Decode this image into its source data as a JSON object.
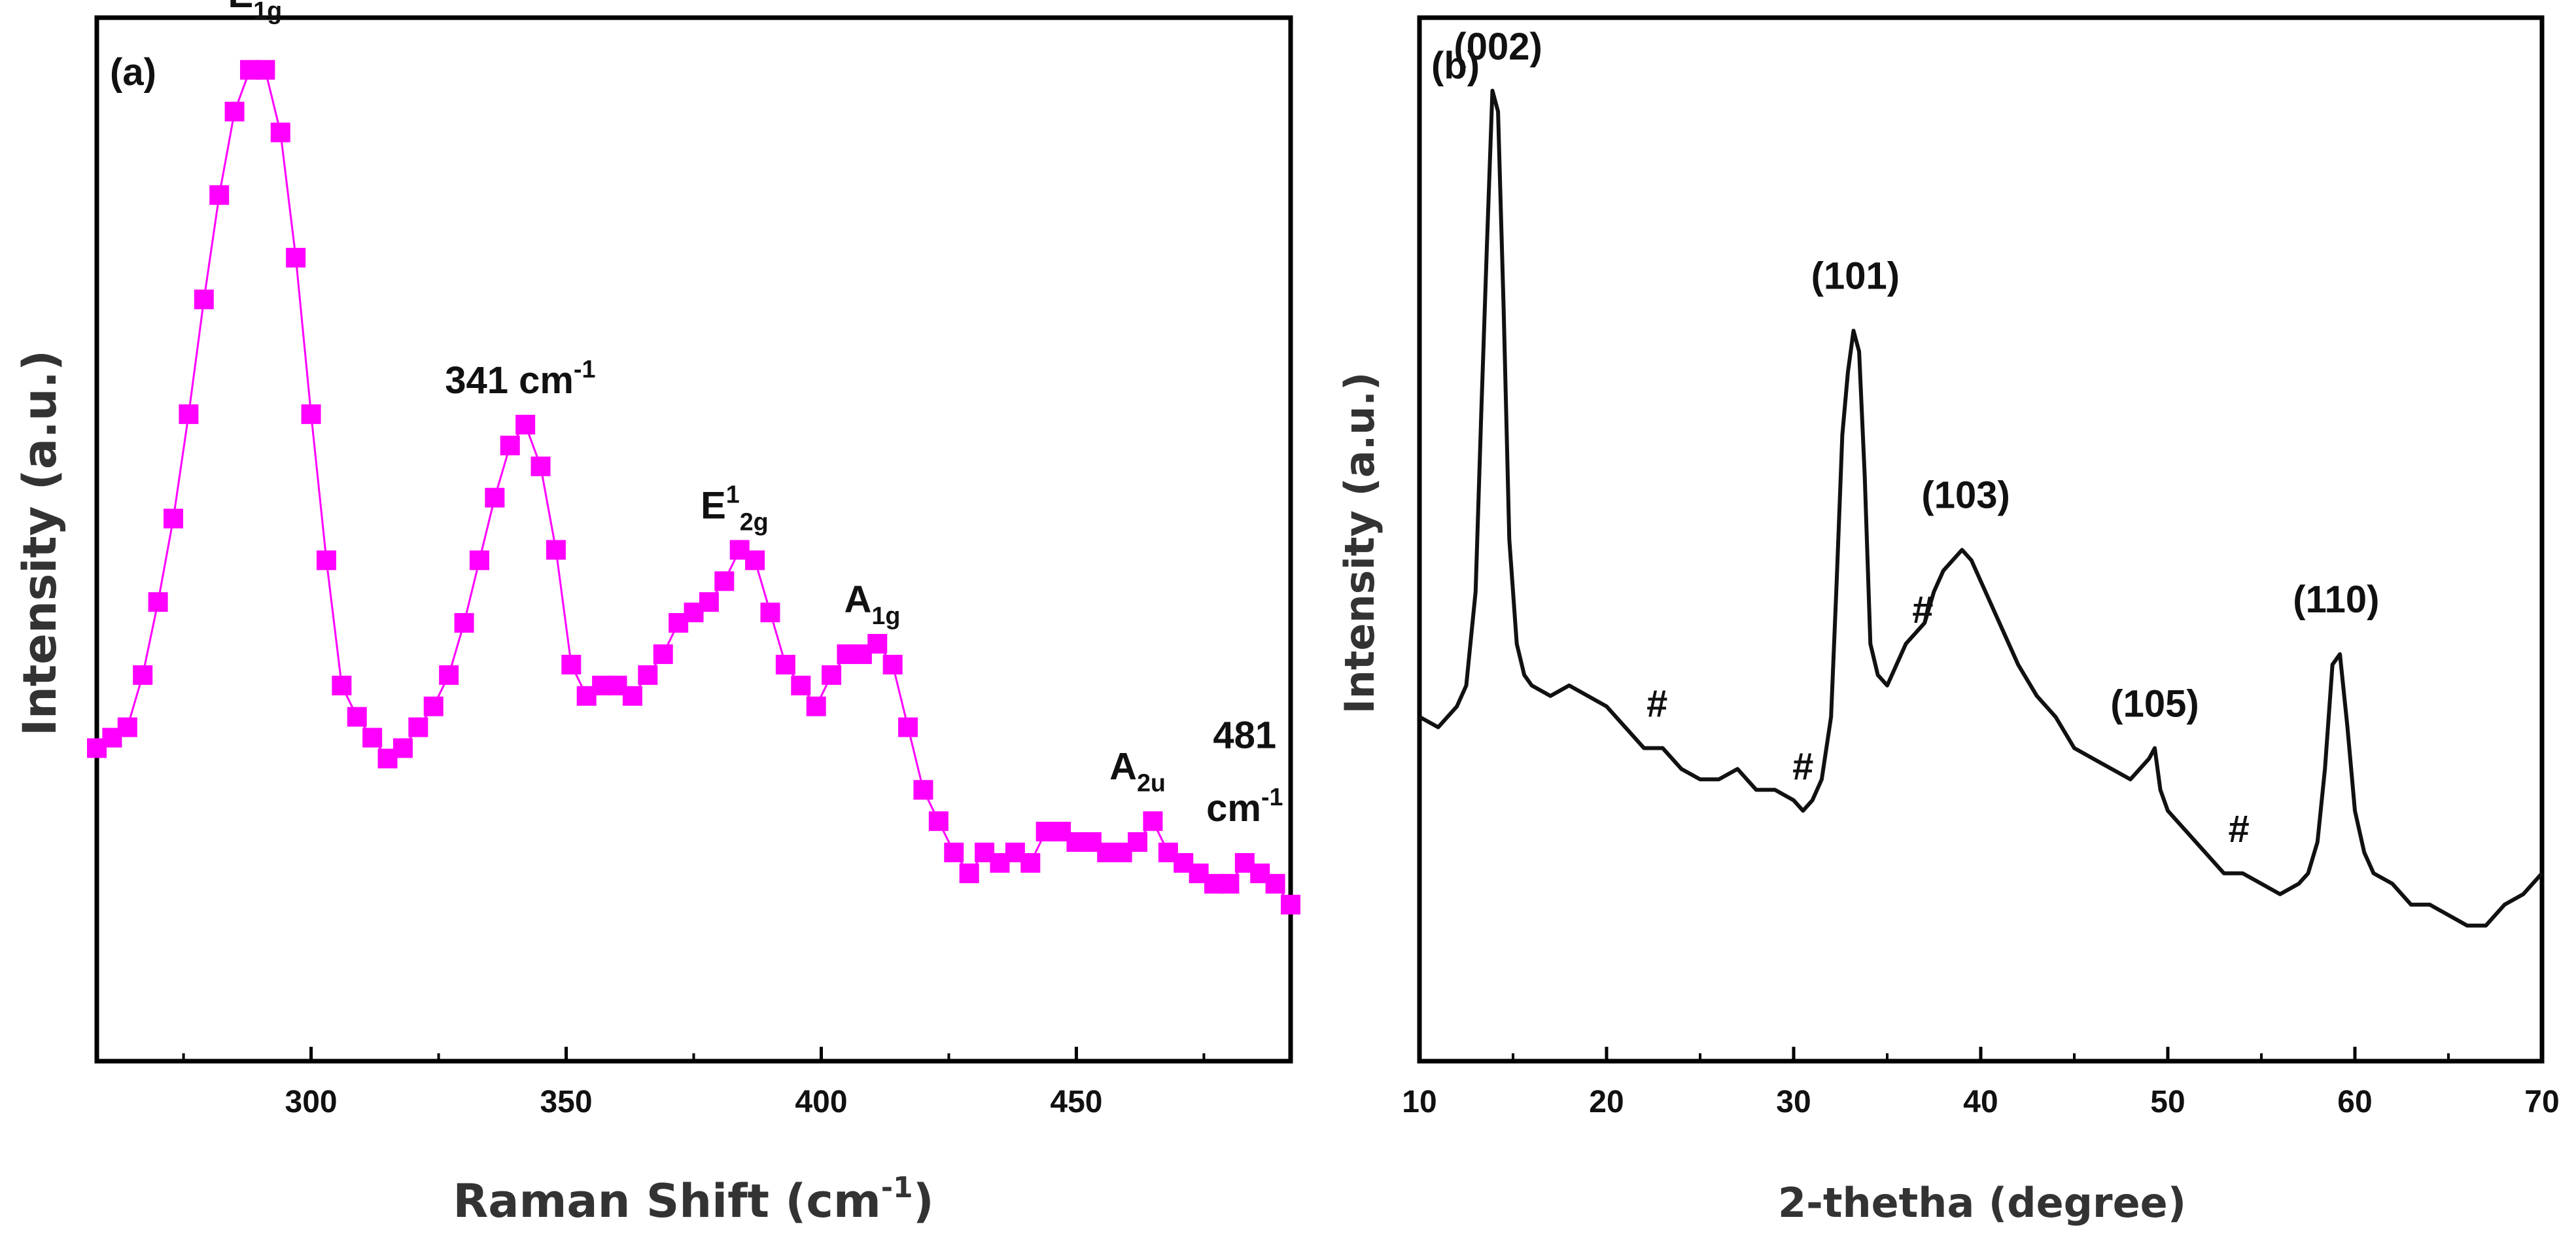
{
  "chart_data": [
    {
      "panel_label": "(a)",
      "type": "line",
      "xlabel": "Raman Shift (cm",
      "xlabel_sup": "-1",
      "xlabel_close": ")",
      "ylabel": "Intensity (a.u.)",
      "xlim": [
        258,
        492
      ],
      "ylim": [
        0,
        100
      ],
      "x_ticks": [
        "300",
        "350",
        "400",
        "450"
      ],
      "series_color": "#ff00ff",
      "marker": "square",
      "series": [
        {
          "name": "Raman",
          "x": [
            258,
            261,
            264,
            267,
            270,
            273,
            276,
            279,
            282,
            285,
            288,
            291,
            294,
            297,
            300,
            303,
            306,
            309,
            312,
            315,
            318,
            321,
            324,
            327,
            330,
            333,
            336,
            339,
            342,
            345,
            348,
            351,
            354,
            357,
            360,
            363,
            366,
            369,
            372,
            375,
            378,
            381,
            384,
            387,
            390,
            393,
            396,
            399,
            402,
            405,
            408,
            411,
            414,
            417,
            420,
            423,
            426,
            429,
            432,
            435,
            438,
            441,
            444,
            447,
            450,
            453,
            456,
            459,
            462,
            465,
            468,
            471,
            474,
            477,
            480,
            483,
            486,
            489,
            492
          ],
          "y": [
            30,
            31,
            32,
            37,
            44,
            52,
            62,
            73,
            83,
            91,
            95,
            95,
            89,
            77,
            62,
            48,
            36,
            33,
            31,
            29,
            30,
            32,
            34,
            37,
            42,
            48,
            54,
            59,
            61,
            57,
            49,
            38,
            35,
            36,
            36,
            35,
            37,
            39,
            42,
            43,
            44,
            46,
            49,
            48,
            43,
            38,
            36,
            34,
            37,
            39,
            39,
            40,
            38,
            32,
            26,
            23,
            20,
            18,
            20,
            19,
            20,
            19,
            22,
            22,
            21,
            21,
            20,
            20,
            21,
            23,
            20,
            19,
            18,
            17,
            17,
            19,
            18,
            17,
            15
          ]
        }
      ],
      "annotations": [
        {
          "text": "E",
          "sub": "1g",
          "x": 289,
          "y": 101,
          "color": "#111111"
        },
        {
          "text": "341 cm",
          "sup": "-1",
          "x": 341,
          "y": 64,
          "color": "#e00000"
        },
        {
          "text": "E",
          "sup": "1",
          "sub": "2g",
          "x": 383,
          "y": 52,
          "color": "#111111"
        },
        {
          "text": "A",
          "sub": "1g",
          "x": 410,
          "y": 43,
          "color": "#111111"
        },
        {
          "text": "A",
          "sub": "2u",
          "x": 462,
          "y": 27,
          "color": "#111111"
        },
        {
          "text": "481",
          "x": 483,
          "y": 30,
          "color": "#e00000"
        },
        {
          "text": "cm",
          "sup": "-1",
          "x": 483,
          "y": 23,
          "color": "#e00000"
        }
      ]
    },
    {
      "panel_label": "(b)",
      "type": "line",
      "xlabel": "2-thetha (degree)",
      "ylabel": "Intensity (a.u.)",
      "xlim": [
        10,
        70
      ],
      "ylim": [
        0,
        100
      ],
      "x_ticks": [
        "10",
        "20",
        "30",
        "40",
        "50",
        "60",
        "70"
      ],
      "series_color": "#111111",
      "series": [
        {
          "name": "XRD",
          "x": [
            10,
            11,
            12,
            12.5,
            13,
            13.3,
            13.6,
            13.9,
            14.2,
            14.5,
            14.8,
            15.2,
            15.6,
            16,
            17,
            18,
            19,
            20,
            21,
            22,
            23,
            24,
            25,
            26,
            27,
            28,
            29,
            30,
            30.5,
            31,
            31.5,
            32,
            32.3,
            32.6,
            32.9,
            33.2,
            33.5,
            33.8,
            34.1,
            34.5,
            35,
            35.5,
            36,
            36.5,
            37,
            37.5,
            38,
            38.5,
            39,
            39.5,
            40,
            40.5,
            41,
            42,
            43,
            44,
            45,
            46,
            47,
            48,
            48.5,
            49,
            49.3,
            49.6,
            50,
            51,
            52,
            53,
            54,
            55,
            56,
            57,
            57.5,
            58,
            58.4,
            58.8,
            59.2,
            59.6,
            60,
            60.5,
            61,
            62,
            63,
            64,
            65,
            66,
            67,
            68,
            69,
            70
          ],
          "y": [
            33,
            32,
            34,
            36,
            45,
            62,
            78,
            93,
            91,
            72,
            50,
            40,
            37,
            36,
            35,
            36,
            35,
            34,
            32,
            30,
            30,
            28,
            27,
            27,
            28,
            26,
            26,
            25,
            24,
            25,
            27,
            33,
            46,
            60,
            66,
            70,
            68,
            56,
            40,
            37,
            36,
            38,
            40,
            41,
            42,
            45,
            47,
            48,
            49,
            48,
            46,
            44,
            42,
            38,
            35,
            33,
            30,
            29,
            28,
            27,
            28,
            29,
            30,
            26,
            24,
            22,
            20,
            18,
            18,
            17,
            16,
            17,
            18,
            21,
            28,
            38,
            39,
            32,
            24,
            20,
            18,
            17,
            15,
            15,
            14,
            13,
            13,
            15,
            16,
            18
          ]
        }
      ],
      "annotations": [
        {
          "text": "(002)",
          "x": 14.2,
          "y": 96,
          "color": "#111111"
        },
        {
          "text": "(101)",
          "x": 33.3,
          "y": 74,
          "color": "#111111"
        },
        {
          "text": "(103)",
          "x": 39.2,
          "y": 53,
          "color": "#111111"
        },
        {
          "text": "(105)",
          "x": 49.3,
          "y": 33,
          "color": "#111111"
        },
        {
          "text": "(110)",
          "x": 59.0,
          "y": 43,
          "color": "#111111"
        },
        {
          "text": "#",
          "x": 22.7,
          "y": 33,
          "color": "#e00000"
        },
        {
          "text": "#",
          "x": 30.5,
          "y": 27,
          "color": "#e00000"
        },
        {
          "text": "#",
          "x": 36.9,
          "y": 42,
          "color": "#e00000"
        },
        {
          "text": "#",
          "x": 53.8,
          "y": 21,
          "color": "#e00000"
        }
      ]
    }
  ]
}
